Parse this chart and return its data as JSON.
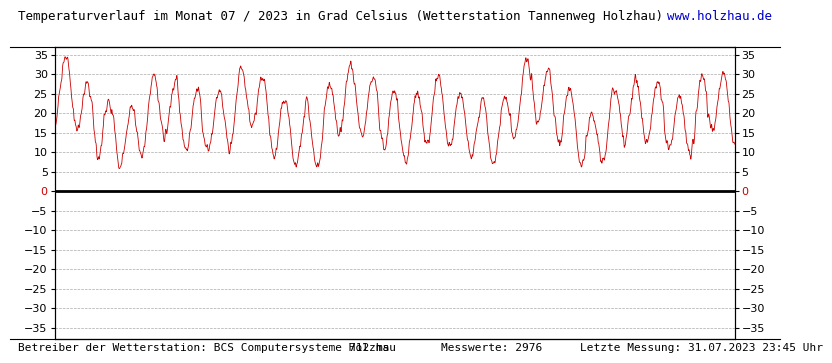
{
  "title": "Temperaturverlauf im Monat 07 / 2023 in Grad Celsius (Wetterstation Tannenweg Holzhau)",
  "url_text": "www.holzhau.de",
  "footer_left": "Betreiber der Wetterstation: BCS Computersysteme Holzhau",
  "footer_middle": "712 ms",
  "footer_right1": "Messwerte: 2976",
  "footer_right2": "Letzte Messung: 31.07.2023 23:45 Uhr",
  "yticks": [
    35,
    30,
    25,
    20,
    15,
    10,
    5,
    0,
    -5,
    -10,
    -15,
    -20,
    -25,
    -30,
    -35
  ],
  "ylim": [
    -38,
    37
  ],
  "xlim": [
    0,
    2975
  ],
  "line_color": "#cc0000",
  "zero_line_color": "#000000",
  "zero_label_color": "#cc0000",
  "grid_color": "#aaaaaa",
  "grid_style": "--",
  "bg_color": "#ffffff",
  "border_color": "#000000",
  "title_fontsize": 9,
  "url_fontsize": 9,
  "footer_fontsize": 8,
  "tick_fontsize": 8,
  "num_points": 2976
}
